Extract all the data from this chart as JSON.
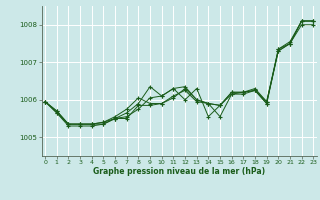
{
  "xlabel": "Graphe pression niveau de la mer (hPa)",
  "bg_color": "#cce8e8",
  "grid_color": "#ffffff",
  "line_color": "#1a5c1a",
  "marker_color": "#1a5c1a",
  "ylim": [
    1004.5,
    1008.5
  ],
  "yticks": [
    1005,
    1006,
    1007,
    1008
  ],
  "xlim": [
    -0.3,
    23.3
  ],
  "xticks": [
    0,
    1,
    2,
    3,
    4,
    5,
    6,
    7,
    8,
    9,
    10,
    11,
    12,
    13,
    14,
    15,
    16,
    17,
    18,
    19,
    20,
    21,
    22,
    23
  ],
  "s1_x": [
    0,
    1,
    2,
    3,
    4,
    5,
    6,
    7,
    8,
    9,
    10,
    11,
    12,
    13,
    14,
    15,
    16,
    17,
    18,
    19,
    20,
    21,
    22,
    23
  ],
  "s1_y": [
    1005.95,
    1005.7,
    1005.35,
    1005.35,
    1005.35,
    1005.4,
    1005.5,
    1005.55,
    1005.75,
    1006.05,
    1006.1,
    1006.3,
    1006.35,
    1006.0,
    1005.9,
    1005.85,
    1006.2,
    1006.2,
    1006.25,
    1005.9,
    1007.35,
    1007.5,
    1008.1,
    1008.1
  ],
  "s2_x": [
    0,
    1,
    2,
    3,
    4,
    5,
    6,
    7,
    8,
    9,
    10,
    11,
    12,
    13,
    14,
    15,
    16,
    17,
    18,
    19,
    20,
    21,
    22,
    23
  ],
  "s2_y": [
    1005.95,
    1005.65,
    1005.35,
    1005.35,
    1005.35,
    1005.4,
    1005.55,
    1005.75,
    1006.05,
    1005.9,
    1005.9,
    1006.05,
    1006.3,
    1006.0,
    1005.9,
    1005.55,
    1006.15,
    1006.15,
    1006.25,
    1005.9,
    1007.3,
    1007.5,
    1008.1,
    1008.1
  ],
  "s3_x": [
    0,
    1,
    2,
    3,
    4,
    5,
    6,
    7,
    8,
    9,
    10,
    11,
    12,
    13,
    14,
    15,
    16,
    17,
    18,
    19,
    20,
    21,
    22,
    23
  ],
  "s3_y": [
    1005.95,
    1005.65,
    1005.3,
    1005.3,
    1005.3,
    1005.35,
    1005.5,
    1005.65,
    1005.9,
    1006.35,
    1006.1,
    1006.3,
    1006.0,
    1006.3,
    1005.55,
    1005.85,
    1006.15,
    1006.2,
    1006.3,
    1005.95,
    1007.35,
    1007.55,
    1008.1,
    1008.1
  ],
  "s4_x": [
    0,
    1,
    2,
    3,
    4,
    5,
    6,
    7,
    8,
    9,
    10,
    11,
    12,
    13,
    14,
    15,
    16,
    17,
    18,
    19,
    20,
    21,
    22,
    23
  ],
  "s4_y": [
    1005.95,
    1005.7,
    1005.35,
    1005.35,
    1005.35,
    1005.35,
    1005.5,
    1005.5,
    1005.85,
    1005.85,
    1005.9,
    1006.1,
    1006.25,
    1005.95,
    1005.9,
    1005.85,
    1006.2,
    1006.2,
    1006.25,
    1005.95,
    1007.3,
    1007.5,
    1008.0,
    1008.0
  ]
}
